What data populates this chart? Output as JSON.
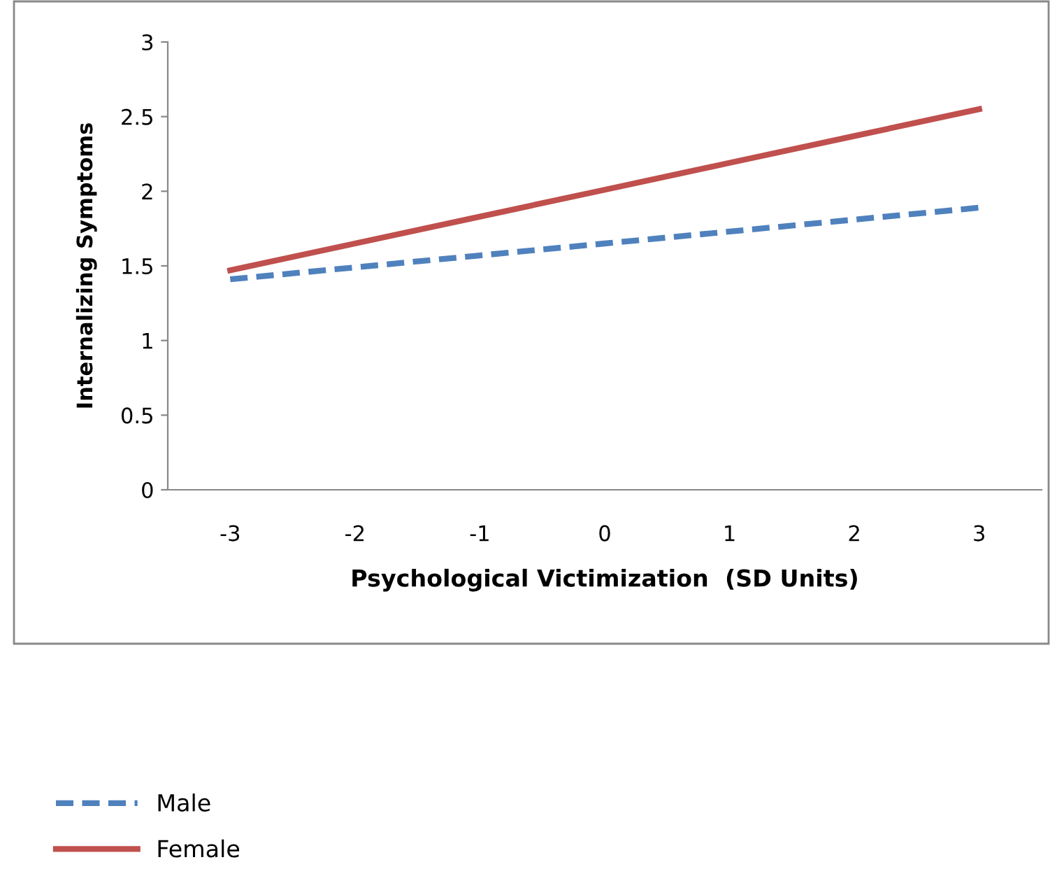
{
  "chart_data": {
    "type": "line",
    "xlabel": "Psychological Victimization  (SD Units)",
    "ylabel": "Internalizing Symptoms",
    "categories": [
      "-3",
      "-2",
      "-1",
      "0",
      "1",
      "2",
      "3"
    ],
    "series": [
      {
        "name": "Male",
        "color": "#4f81bd",
        "line_style": "dashed",
        "values": [
          1.41,
          1.49,
          1.57,
          1.65,
          1.73,
          1.81,
          1.89
        ]
      },
      {
        "name": "Female",
        "color": "#c0504d",
        "line_style": "solid",
        "values": [
          1.47,
          1.65,
          1.83,
          2.01,
          2.19,
          2.37,
          2.55
        ]
      }
    ],
    "ylim": [
      0,
      3
    ],
    "yticks": [
      0,
      0.5,
      1,
      1.5,
      2,
      2.5,
      3
    ],
    "grid": false,
    "legend": "bottom left",
    "marker": "none"
  }
}
